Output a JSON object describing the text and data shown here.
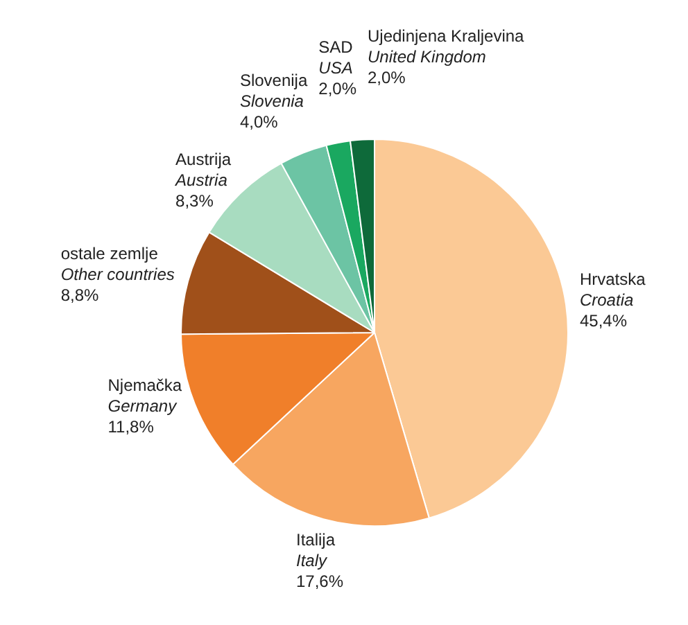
{
  "chart_data": {
    "type": "pie",
    "categories": [
      "Hrvatska\nCroatia",
      "Italija\nItaly",
      "Njemačka\nGermany",
      "ostale zemlje\nOther countries",
      "Austrija\nAustria",
      "Slovenija\nSlovenia",
      "SAD\nUSA",
      "Ujedinjena Kraljevina\nUnited Kingdom"
    ],
    "values": [
      45.4,
      17.6,
      11.8,
      8.8,
      8.3,
      4.0,
      2.0,
      2.0
    ],
    "value_labels": [
      "45,4%",
      "17,6%",
      "11,8%",
      "8,8%",
      "8,3%",
      "4,0%",
      "2,0%",
      "2,0%"
    ],
    "colors": [
      "#fbc995",
      "#f7a660",
      "#f07f2a",
      "#a0501a",
      "#a8dcc0",
      "#6cc4a4",
      "#1aa860",
      "#0e6a3a"
    ],
    "legend": false
  }
}
